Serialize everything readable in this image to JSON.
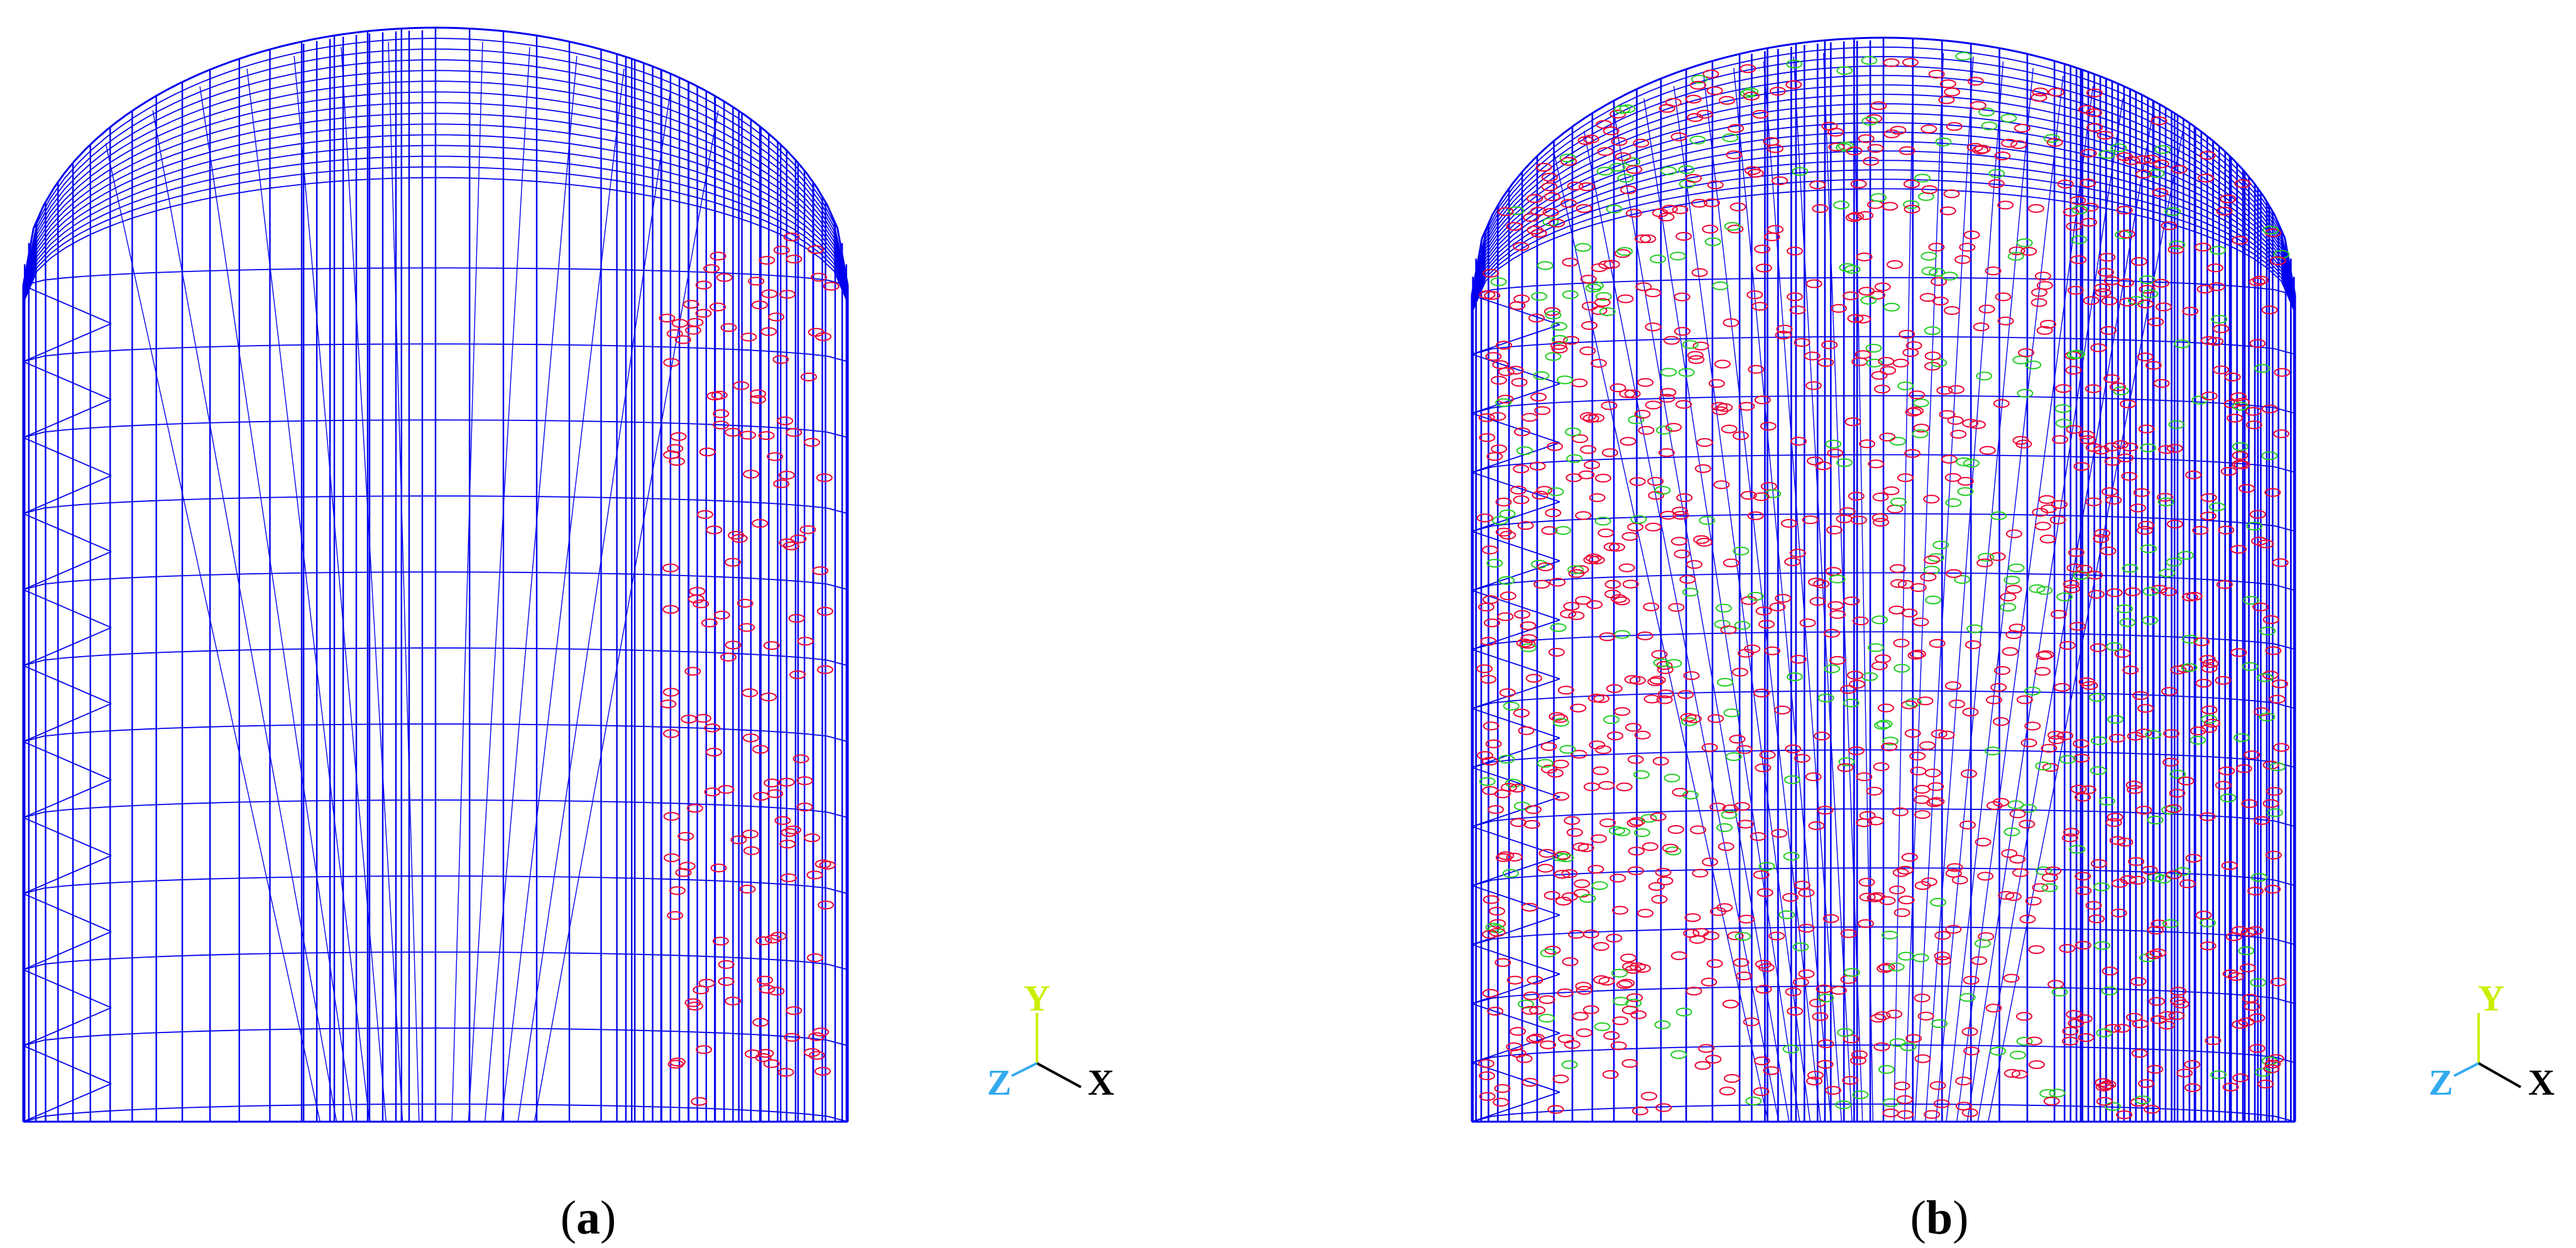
{
  "panels": [
    {
      "id": "a",
      "caption_open": "(",
      "caption_letter": "a",
      "caption_close": ")",
      "dense": false
    },
    {
      "id": "b",
      "caption_open": "(",
      "caption_letter": "b",
      "caption_close": ")",
      "dense": true
    }
  ],
  "triad": {
    "x_label": "X",
    "y_label": "Y",
    "z_label": "Z",
    "x_color": "#000000",
    "y_color": "#ccee00",
    "z_color": "#33aaee"
  },
  "colors": {
    "mesh": "#0000ee",
    "marker_red": "#ee0033",
    "marker_green": "#22cc22"
  }
}
